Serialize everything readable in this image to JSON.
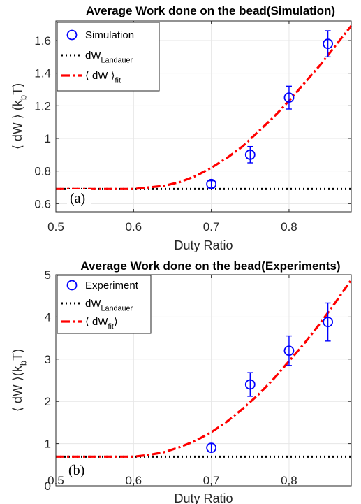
{
  "chart_data": [
    {
      "type": "line",
      "title": "Average Work done on the bead(Simulation)",
      "xlabel": "Duty Ratio",
      "ylabel": {
        "main": "⟨ dW ⟩ (k",
        "sub": "b",
        "tail": "T)"
      },
      "xlim": [
        0.5,
        0.88
      ],
      "ylim": [
        0.55,
        1.72
      ],
      "xticks": [
        0.5,
        0.6,
        0.7,
        0.8
      ],
      "xtick_labels": [
        "0.5",
        "0.6",
        "0.7",
        "0.8"
      ],
      "yticks": [
        0.6,
        0.8,
        1.0,
        1.2,
        1.4,
        1.6
      ],
      "ytick_labels": [
        "0.6",
        "0.8",
        "1",
        "1.2",
        "1.4",
        "1.6"
      ],
      "grid": true,
      "panel_label": "(a)",
      "legend_position": "top-left",
      "legend": [
        {
          "kind": "marker",
          "main": "Simulation",
          "sub": "",
          "tail": ""
        },
        {
          "kind": "dotted",
          "main": "dW",
          "sub": "Landauer",
          "tail": ""
        },
        {
          "kind": "dashdot",
          "main": "⟨ dW ⟩",
          "sub": "fit",
          "tail": ""
        }
      ],
      "series": [
        {
          "name": "Simulation",
          "kind": "errorbar",
          "x": [
            0.7,
            0.75,
            0.8,
            0.85
          ],
          "y": [
            0.72,
            0.9,
            1.25,
            1.58
          ],
          "err": [
            0.02,
            0.05,
            0.07,
            0.08
          ]
        },
        {
          "name": "dW_Landauer",
          "kind": "hline",
          "y": 0.69
        },
        {
          "name": "⟨ dW ⟩_fit",
          "kind": "fit",
          "x": [
            0.5,
            0.6,
            0.62,
            0.64,
            0.66,
            0.68,
            0.7,
            0.72,
            0.74,
            0.76,
            0.78,
            0.8,
            0.82,
            0.84,
            0.86,
            0.88
          ],
          "y": [
            0.69,
            0.69,
            0.7,
            0.71,
            0.733,
            0.77,
            0.82,
            0.88,
            0.95,
            1.04,
            1.13,
            1.23,
            1.34,
            1.45,
            1.57,
            1.69
          ]
        }
      ],
      "colors": {
        "sim": "#0000ff",
        "landauer": "#000000",
        "fit": "#ff0000",
        "grid": "#e6e6e6"
      }
    },
    {
      "type": "line",
      "title": "Average Work done on the bead(Experiments)",
      "xlabel": "Duty Ratio",
      "ylabel": {
        "main": "⟨ dW ⟩(k",
        "sub": "b",
        "tail": "T)"
      },
      "xlim": [
        0.5,
        0.88
      ],
      "ylim": [
        0,
        5
      ],
      "xticks": [
        0.5,
        0.6,
        0.7,
        0.8
      ],
      "xtick_labels": [
        "0.5",
        "0.6",
        "0.7",
        "0.8"
      ],
      "yticks": [
        0,
        1,
        2,
        3,
        4,
        5
      ],
      "ytick_labels": [
        "0",
        "1",
        "2",
        "3",
        "4",
        "5"
      ],
      "grid": true,
      "panel_label": "(b)",
      "legend_position": "top-left",
      "legend": [
        {
          "kind": "marker",
          "main": "Experiment",
          "sub": "",
          "tail": ""
        },
        {
          "kind": "dotted",
          "main": "dW",
          "sub": "Landauer",
          "tail": ""
        },
        {
          "kind": "dashdot",
          "main": "⟨ dW",
          "sub": "fit",
          "tail": "⟩"
        }
      ],
      "series": [
        {
          "name": "Experiment",
          "kind": "errorbar",
          "x": [
            0.7,
            0.75,
            0.8,
            0.85
          ],
          "y": [
            0.9,
            2.4,
            3.2,
            3.88
          ],
          "err": [
            0.1,
            0.28,
            0.35,
            0.45
          ]
        },
        {
          "name": "dW_Landauer",
          "kind": "hline",
          "y": 0.69
        },
        {
          "name": "⟨ dW_fit ⟩",
          "kind": "fit",
          "x": [
            0.5,
            0.6,
            0.62,
            0.64,
            0.66,
            0.68,
            0.7,
            0.72,
            0.74,
            0.76,
            0.78,
            0.8,
            0.82,
            0.84,
            0.86,
            0.88
          ],
          "y": [
            0.69,
            0.69,
            0.73,
            0.8,
            0.92,
            1.07,
            1.27,
            1.52,
            1.82,
            2.15,
            2.53,
            2.95,
            3.38,
            3.85,
            4.35,
            4.88
          ]
        }
      ],
      "colors": {
        "sim": "#0000ff",
        "landauer": "#000000",
        "fit": "#ff0000",
        "grid": "#e6e6e6"
      }
    }
  ]
}
